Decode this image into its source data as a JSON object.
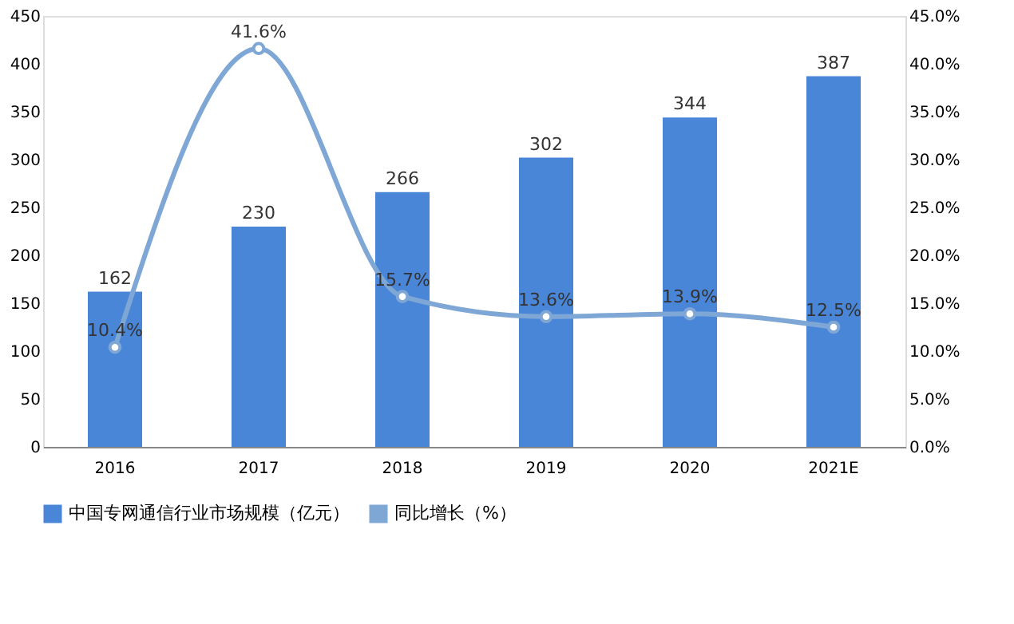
{
  "chart_data": {
    "type": "bar",
    "categories": [
      "2016",
      "2017",
      "2018",
      "2019",
      "2020",
      "2021E"
    ],
    "series": [
      {
        "name": "中国专网通信行业市场规模（亿元）",
        "color": "#4a86d8",
        "values": [
          162,
          230,
          266,
          302,
          344,
          387
        ],
        "value_labels": [
          "162",
          "230",
          "266",
          "302",
          "344",
          "387"
        ]
      },
      {
        "name": "同比增长（%）",
        "type": "line",
        "axis": "y2",
        "color": "#7fa7d6",
        "marker": "circle",
        "values": [
          10.4,
          41.6,
          15.7,
          13.6,
          13.9,
          12.5
        ],
        "value_labels": [
          "10.4%",
          "41.6%",
          "15.7%",
          "13.6%",
          "13.9%",
          "12.5%"
        ]
      }
    ],
    "ylim": [
      0,
      450
    ],
    "yticks": [
      0,
      50,
      100,
      150,
      200,
      250,
      300,
      350,
      400,
      450
    ],
    "y2lim": [
      0,
      45
    ],
    "y2ticks": [
      {
        "value": 0,
        "label": "0.0%"
      },
      {
        "value": 5,
        "label": "5.0%"
      },
      {
        "value": 10,
        "label": "10.0%"
      },
      {
        "value": 15,
        "label": "15.0%"
      },
      {
        "value": 20,
        "label": "20.0%"
      },
      {
        "value": 25,
        "label": "25.0%"
      },
      {
        "value": 30,
        "label": "30.0%"
      },
      {
        "value": 35,
        "label": "35.0%"
      },
      {
        "value": 40,
        "label": "40.0%"
      },
      {
        "value": 45,
        "label": "45.0%"
      }
    ],
    "grid": false,
    "legend": "bottom"
  }
}
